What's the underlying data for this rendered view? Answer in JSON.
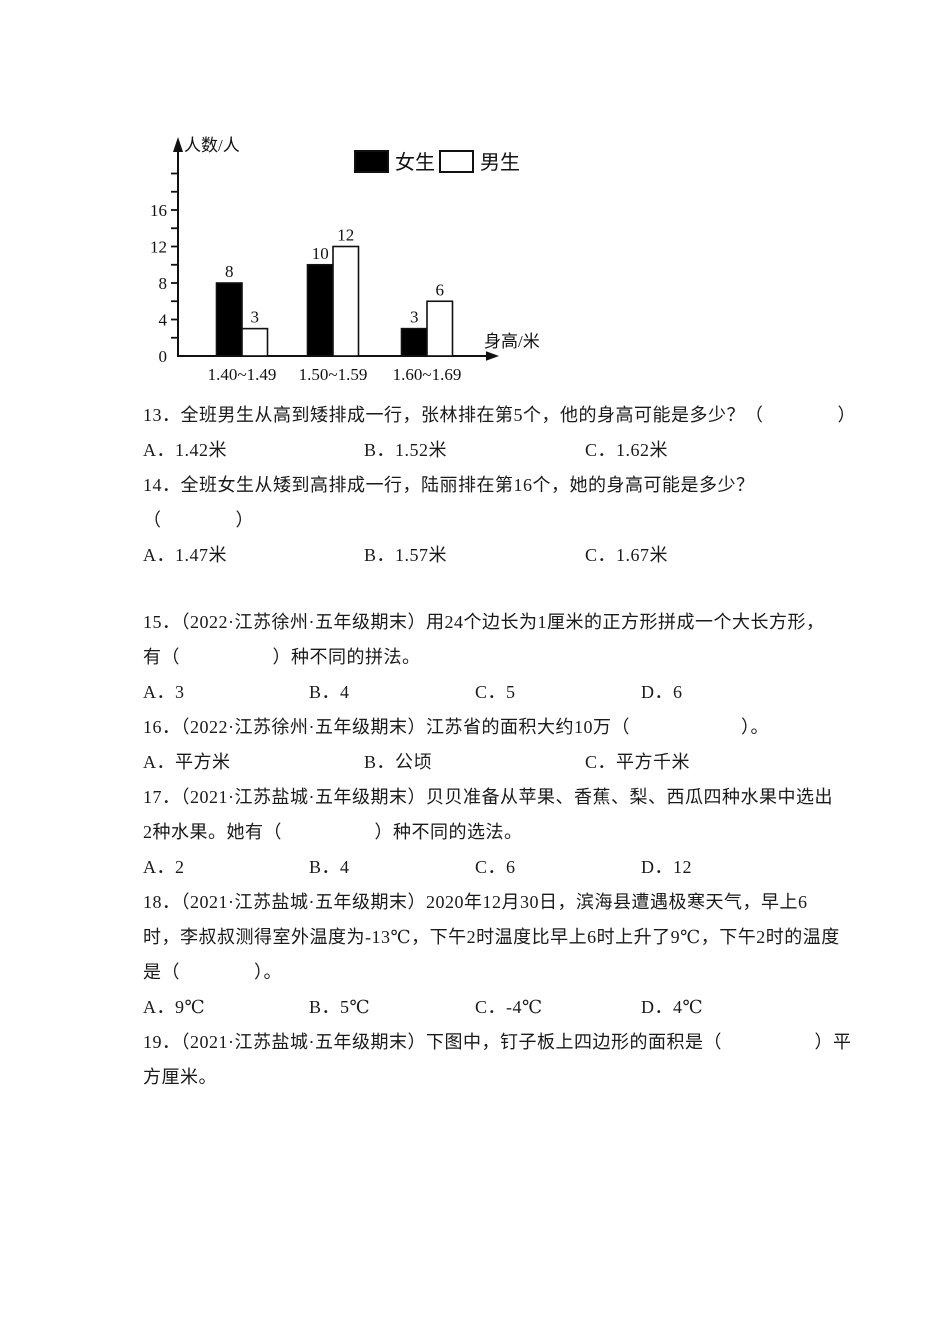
{
  "page": {
    "background": "#ffffff",
    "text_color": "#1a1a1a"
  },
  "chart_data": {
    "type": "bar",
    "title": "",
    "ylabel": "人数/人",
    "xlabel": "身高/米",
    "categories": [
      "1.40~1.49",
      "1.50~1.59",
      "1.60~1.69"
    ],
    "series": [
      {
        "name": "女生",
        "values": [
          8,
          10,
          3
        ],
        "fill": "#000000"
      },
      {
        "name": "男生",
        "values": [
          3,
          12,
          6
        ],
        "fill": "#ffffff"
      }
    ],
    "ylim": [
      0,
      20
    ],
    "ytick_labels": [
      0,
      4,
      8,
      12,
      16
    ],
    "ytick_minor_step": 2,
    "grid": false,
    "legend_position": "top",
    "bar_value_labels": true,
    "ink_color": "#111111"
  },
  "questions": [
    {
      "id": "13",
      "lines": [
        "13．全班男生从高到矮排成一行，张林排在第5个，他的身高可能是多少？（　　　　）"
      ],
      "options": [
        "A．1.42米",
        "B．1.52米",
        "C．1.62米"
      ],
      "option_columns": 3
    },
    {
      "id": "14",
      "lines": [
        "14．全班女生从矮到高排成一行，陆丽排在第16个，她的身高可能是多少？",
        "（　　　　）"
      ],
      "options": [
        "A．1.47米",
        "B．1.57米",
        "C．1.67米"
      ],
      "option_columns": 3
    },
    {
      "id": "15",
      "lines": [
        "15．（2022·江苏徐州·五年级期末）用24个边长为1厘米的正方形拼成一个大长方形，",
        "有（　　　　　）种不同的拼法。"
      ],
      "options": [
        "A．3",
        "B．4",
        "C．5",
        "D．6"
      ],
      "option_columns": 4
    },
    {
      "id": "16",
      "lines": [
        "16．（2022·江苏徐州·五年级期末）江苏省的面积大约10万（　　　　　　）。"
      ],
      "options": [
        "A．平方米",
        "B．公顷",
        "C．平方千米"
      ],
      "option_columns": 3
    },
    {
      "id": "17",
      "lines": [
        "17．（2021·江苏盐城·五年级期末）贝贝准备从苹果、香蕉、梨、西瓜四种水果中选出",
        "2种水果。她有（　　　　　）种不同的选法。"
      ],
      "options": [
        "A．2",
        "B．4",
        "C．6",
        "D．12"
      ],
      "option_columns": 4
    },
    {
      "id": "18",
      "lines": [
        "18．（2021·江苏盐城·五年级期末）2020年12月30日，滨海县遭遇极寒天气，早上6",
        "时，李叔叔测得室外温度为-13℃，下午2时温度比早上6时上升了9℃，下午2时的温度",
        "是（　　　　）。"
      ],
      "options": [
        "A．9℃",
        "B．5℃",
        "C．-4℃",
        "D．4℃"
      ],
      "option_columns": 4
    },
    {
      "id": "19",
      "lines": [
        "19．（2021·江苏盐城·五年级期末）下图中，钉子板上四边形的面积是（　　　　　）平",
        "方厘米。"
      ],
      "options": [],
      "option_columns": 0
    }
  ]
}
